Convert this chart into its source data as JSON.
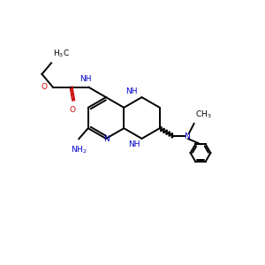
{
  "bg_color": "#ffffff",
  "blue": "#0000cc",
  "red": "#cc0000",
  "black": "#000000",
  "lw": 1.4,
  "fs": 6.5,
  "figsize": [
    3.0,
    3.0
  ],
  "dpi": 100,
  "xlim": [
    0,
    10
  ],
  "ylim": [
    0,
    10
  ]
}
